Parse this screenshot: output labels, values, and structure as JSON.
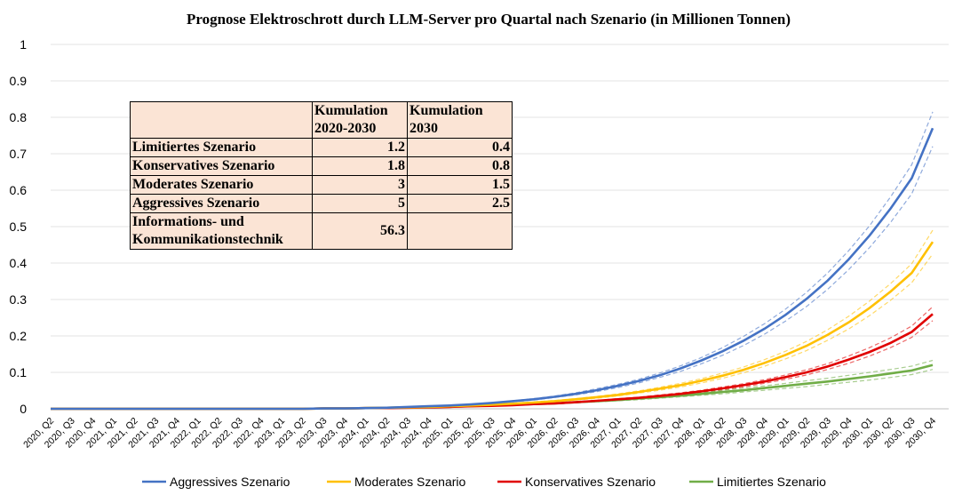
{
  "chart_data": {
    "type": "line",
    "title": "Prognose Elektroschrott durch LLM-Server pro Quartal nach Szenario (in Millionen Tonnen)",
    "xlabel": "",
    "ylabel": "",
    "ylim": [
      0,
      1
    ],
    "yticks": [
      "0",
      "0.1",
      "0.2",
      "0.3",
      "0.4",
      "0.5",
      "0.6",
      "0.7",
      "0.8",
      "0.9",
      "1"
    ],
    "grid": true,
    "legend_position": "bottom",
    "categories": [
      "2020, Q2",
      "2020, Q3",
      "2020, Q4",
      "2021, Q1",
      "2021, Q2",
      "2021, Q3",
      "2021, Q4",
      "2022, Q1",
      "2022, Q2",
      "2022, Q3",
      "2022, Q4",
      "2023, Q1",
      "2023, Q2",
      "2023, Q3",
      "2023, Q4",
      "2024, Q1",
      "2024, Q2",
      "2024, Q3",
      "2024, Q4",
      "2025, Q1",
      "2025, Q2",
      "2025, Q3",
      "2025, Q4",
      "2026, Q1",
      "2026, Q2",
      "2026, Q3",
      "2026, Q4",
      "2027, Q1",
      "2027, Q2",
      "2027, Q3",
      "2027, Q4",
      "2028, Q1",
      "2028, Q2",
      "2028, Q3",
      "2028, Q4",
      "2029, Q1",
      "2029, Q2",
      "2029, Q3",
      "2029, Q4",
      "2030, Q1",
      "2030, Q2",
      "2030, Q3",
      "2030, Q4"
    ],
    "series": [
      {
        "name": "Aggressives Szenario",
        "color": "#4472c4",
        "values": [
          0,
          0,
          0,
          0,
          0,
          0,
          0,
          0,
          0,
          0,
          0,
          0,
          0,
          0.001,
          0.001,
          0.002,
          0.003,
          0.005,
          0.007,
          0.009,
          0.012,
          0.016,
          0.021,
          0.026,
          0.033,
          0.041,
          0.051,
          0.063,
          0.076,
          0.092,
          0.111,
          0.133,
          0.158,
          0.187,
          0.22,
          0.258,
          0.302,
          0.352,
          0.41,
          0.476,
          0.55,
          0.633,
          0.77
        ],
        "upper": [
          0,
          0,
          0,
          0,
          0,
          0,
          0,
          0,
          0,
          0,
          0,
          0,
          0,
          0.001,
          0.001,
          0.002,
          0.003,
          0.005,
          0.007,
          0.009,
          0.013,
          0.017,
          0.022,
          0.028,
          0.035,
          0.044,
          0.055,
          0.067,
          0.081,
          0.098,
          0.118,
          0.141,
          0.168,
          0.199,
          0.234,
          0.274,
          0.32,
          0.373,
          0.434,
          0.503,
          0.582,
          0.67,
          0.815
        ],
        "lower": [
          0,
          0,
          0,
          0,
          0,
          0,
          0,
          0,
          0,
          0,
          0,
          0,
          0,
          0.001,
          0.001,
          0.002,
          0.003,
          0.004,
          0.006,
          0.008,
          0.011,
          0.015,
          0.019,
          0.024,
          0.031,
          0.038,
          0.047,
          0.058,
          0.071,
          0.086,
          0.103,
          0.124,
          0.147,
          0.174,
          0.205,
          0.241,
          0.281,
          0.328,
          0.382,
          0.443,
          0.512,
          0.59,
          0.72
        ]
      },
      {
        "name": "Moderates Szenario",
        "color": "#ffc000",
        "values": [
          0,
          0,
          0,
          0,
          0,
          0,
          0,
          0,
          0,
          0,
          0,
          0,
          0,
          0.001,
          0.001,
          0.002,
          0.003,
          0.004,
          0.005,
          0.007,
          0.009,
          0.011,
          0.014,
          0.017,
          0.021,
          0.026,
          0.032,
          0.038,
          0.046,
          0.055,
          0.065,
          0.077,
          0.091,
          0.107,
          0.126,
          0.148,
          0.173,
          0.203,
          0.237,
          0.277,
          0.322,
          0.373,
          0.458
        ],
        "upper": [
          0,
          0,
          0,
          0,
          0,
          0,
          0,
          0,
          0,
          0,
          0,
          0,
          0,
          0.001,
          0.001,
          0.002,
          0.003,
          0.004,
          0.006,
          0.008,
          0.01,
          0.012,
          0.015,
          0.019,
          0.023,
          0.028,
          0.034,
          0.041,
          0.049,
          0.059,
          0.07,
          0.083,
          0.098,
          0.115,
          0.135,
          0.158,
          0.185,
          0.217,
          0.254,
          0.296,
          0.344,
          0.398,
          0.49
        ],
        "lower": [
          0,
          0,
          0,
          0,
          0,
          0,
          0,
          0,
          0,
          0,
          0,
          0,
          0,
          0.001,
          0.001,
          0.002,
          0.003,
          0.004,
          0.005,
          0.007,
          0.008,
          0.01,
          0.013,
          0.016,
          0.019,
          0.024,
          0.029,
          0.035,
          0.043,
          0.051,
          0.06,
          0.071,
          0.084,
          0.099,
          0.117,
          0.137,
          0.16,
          0.188,
          0.219,
          0.256,
          0.298,
          0.346,
          0.425
        ]
      },
      {
        "name": "Konservatives Szenario",
        "color": "#e00000",
        "values": [
          0,
          0,
          0,
          0,
          0,
          0,
          0,
          0,
          0,
          0,
          0,
          0,
          0,
          0.001,
          0.001,
          0.002,
          0.002,
          0.003,
          0.004,
          0.005,
          0.007,
          0.008,
          0.01,
          0.013,
          0.015,
          0.018,
          0.022,
          0.026,
          0.03,
          0.035,
          0.041,
          0.048,
          0.056,
          0.065,
          0.075,
          0.087,
          0.1,
          0.116,
          0.135,
          0.156,
          0.181,
          0.211,
          0.26
        ],
        "upper": [
          0,
          0,
          0,
          0,
          0,
          0,
          0,
          0,
          0,
          0,
          0,
          0,
          0,
          0.001,
          0.001,
          0.002,
          0.002,
          0.003,
          0.004,
          0.006,
          0.007,
          0.009,
          0.011,
          0.014,
          0.016,
          0.019,
          0.023,
          0.028,
          0.032,
          0.038,
          0.044,
          0.051,
          0.06,
          0.069,
          0.08,
          0.093,
          0.107,
          0.124,
          0.145,
          0.168,
          0.195,
          0.227,
          0.28
        ],
        "lower": [
          0,
          0,
          0,
          0,
          0,
          0,
          0,
          0,
          0,
          0,
          0,
          0,
          0,
          0.001,
          0.001,
          0.002,
          0.002,
          0.003,
          0.004,
          0.005,
          0.006,
          0.008,
          0.01,
          0.012,
          0.014,
          0.017,
          0.02,
          0.024,
          0.028,
          0.033,
          0.038,
          0.045,
          0.052,
          0.06,
          0.07,
          0.081,
          0.093,
          0.108,
          0.125,
          0.145,
          0.168,
          0.196,
          0.242
        ]
      },
      {
        "name": "Limitiertes Szenario",
        "color": "#70ad47",
        "values": [
          0,
          0,
          0,
          0,
          0,
          0,
          0,
          0,
          0,
          0,
          0,
          0,
          0,
          0.001,
          0.001,
          0.002,
          0.003,
          0.004,
          0.005,
          0.006,
          0.007,
          0.009,
          0.011,
          0.013,
          0.015,
          0.018,
          0.021,
          0.024,
          0.028,
          0.032,
          0.036,
          0.041,
          0.046,
          0.051,
          0.057,
          0.063,
          0.069,
          0.075,
          0.082,
          0.089,
          0.097,
          0.105,
          0.12
        ],
        "upper": [
          0,
          0,
          0,
          0,
          0,
          0,
          0,
          0,
          0,
          0,
          0,
          0,
          0,
          0.001,
          0.001,
          0.002,
          0.003,
          0.004,
          0.005,
          0.006,
          0.008,
          0.01,
          0.012,
          0.014,
          0.017,
          0.02,
          0.023,
          0.027,
          0.031,
          0.035,
          0.04,
          0.045,
          0.051,
          0.057,
          0.063,
          0.07,
          0.077,
          0.084,
          0.092,
          0.1,
          0.108,
          0.117,
          0.133
        ],
        "lower": [
          0,
          0,
          0,
          0,
          0,
          0,
          0,
          0,
          0,
          0,
          0,
          0,
          0,
          0.001,
          0.001,
          0.002,
          0.003,
          0.004,
          0.005,
          0.006,
          0.007,
          0.008,
          0.01,
          0.012,
          0.014,
          0.016,
          0.019,
          0.022,
          0.025,
          0.029,
          0.033,
          0.037,
          0.041,
          0.046,
          0.051,
          0.056,
          0.061,
          0.067,
          0.073,
          0.079,
          0.086,
          0.094,
          0.108
        ]
      }
    ],
    "inset_table": {
      "headers": [
        "",
        "Kumulation 2020-2030",
        "Kumulation 2030"
      ],
      "rows": [
        {
          "label": "Limitiertes Szenario",
          "cumulative": "1.2",
          "year2030": "0.4"
        },
        {
          "label": "Konservatives Szenario",
          "cumulative": "1.8",
          "year2030": "0.8"
        },
        {
          "label": "Moderates Szenario",
          "cumulative": "3",
          "year2030": "1.5"
        },
        {
          "label": "Aggressives Szenario",
          "cumulative": "5",
          "year2030": "2.5"
        },
        {
          "label": "Informations- und Kommunikationstechnik",
          "cumulative": "56.3",
          "year2030": ""
        }
      ]
    }
  }
}
